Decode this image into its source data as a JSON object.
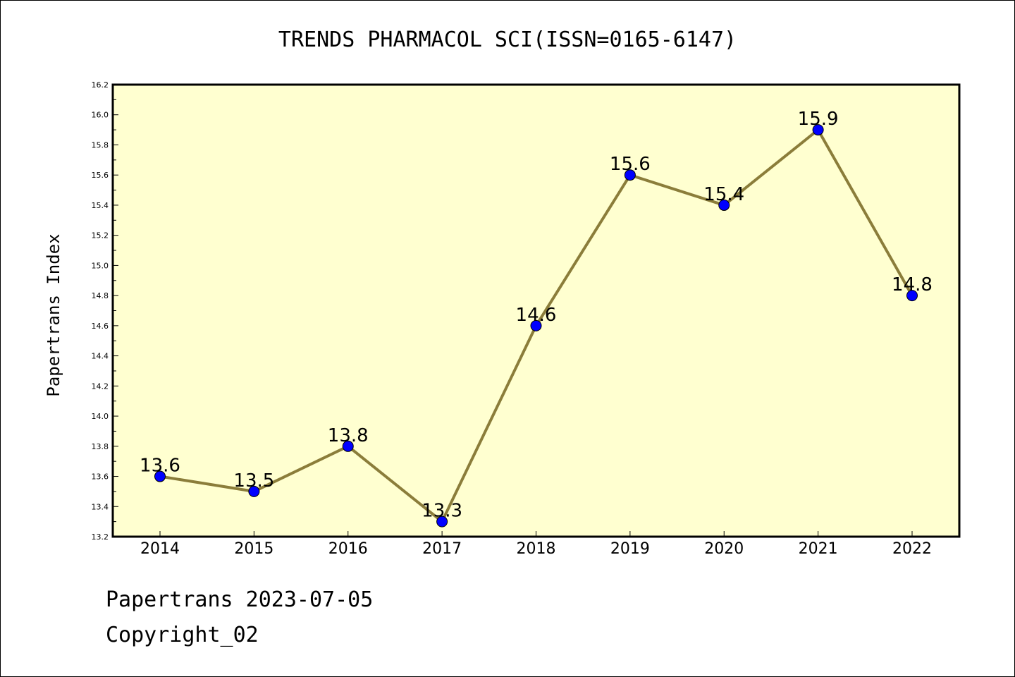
{
  "chart_data": {
    "type": "line",
    "title": "TRENDS PHARMACOL SCI(ISSN=0165-6147)",
    "ylabel": "Papertrans Index",
    "xlabel": "",
    "categories": [
      "2014",
      "2015",
      "2016",
      "2017",
      "2018",
      "2019",
      "2020",
      "2021",
      "2022"
    ],
    "values": [
      13.6,
      13.5,
      13.8,
      13.3,
      14.6,
      15.6,
      15.4,
      15.9,
      14.8
    ],
    "data_labels": [
      "13.6",
      "13.5",
      "13.8",
      "13.3",
      "14.6",
      "15.6",
      "15.4",
      "15.9",
      "14.8"
    ],
    "ylim": [
      13.2,
      16.2
    ],
    "yticks": [
      "13.2",
      "13.4",
      "13.6",
      "13.8",
      "14.0",
      "14.2",
      "14.4",
      "14.6",
      "14.8",
      "15.0",
      "15.2",
      "15.4",
      "15.6",
      "15.8",
      "16.0",
      "16.2"
    ],
    "grid": false,
    "legend": "none",
    "colors": {
      "plot_background": "#ffffd0",
      "line": "#8b7d3a",
      "marker": "#0000ff"
    }
  },
  "footer": {
    "line1": "Papertrans 2023-07-05",
    "line2": "Copyright_02"
  }
}
